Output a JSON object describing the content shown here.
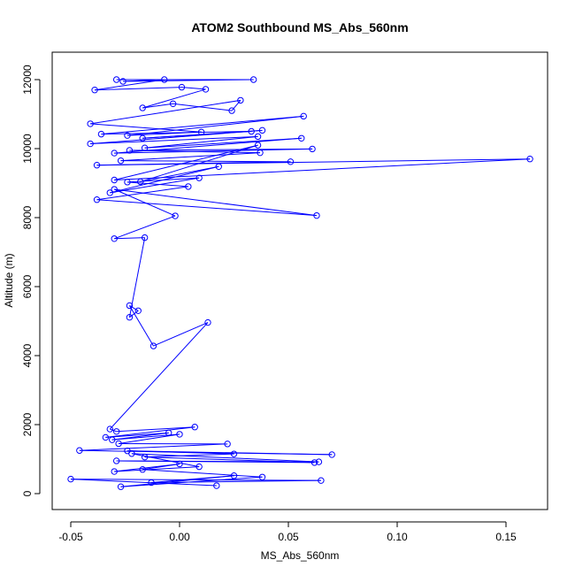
{
  "chart_data": {
    "type": "line",
    "title": "ATOM2 Southbound MS_Abs_560nm",
    "xlabel": "MS_Abs_560nm",
    "ylabel": "Altitude (m)",
    "xlim": [
      -0.05,
      0.16
    ],
    "ylim": [
      0,
      12000
    ],
    "x_ticks": [
      -0.05,
      0.0,
      0.05,
      0.1,
      0.15
    ],
    "x_tick_labels": [
      "-0.05",
      "0.00",
      "0.05",
      "0.10",
      "0.15"
    ],
    "y_ticks": [
      0,
      2000,
      4000,
      6000,
      8000,
      10000,
      12000
    ],
    "y_tick_labels": [
      "0",
      "2000",
      "4000",
      "6000",
      "8000",
      "10000",
      "12000"
    ],
    "grid": false,
    "series_color": "#0000FF",
    "markers": "open-circle",
    "points": [
      {
        "x": -0.029,
        "y": 12000
      },
      {
        "x": 0.034,
        "y": 12000
      },
      {
        "x": -0.026,
        "y": 11950
      },
      {
        "x": -0.007,
        "y": 12000
      },
      {
        "x": -0.039,
        "y": 11700
      },
      {
        "x": 0.001,
        "y": 11780
      },
      {
        "x": 0.012,
        "y": 11720
      },
      {
        "x": -0.017,
        "y": 11180
      },
      {
        "x": -0.003,
        "y": 11300
      },
      {
        "x": 0.024,
        "y": 11100
      },
      {
        "x": 0.028,
        "y": 11400
      },
      {
        "x": -0.041,
        "y": 10720
      },
      {
        "x": 0.01,
        "y": 10480
      },
      {
        "x": -0.024,
        "y": 10380
      },
      {
        "x": 0.057,
        "y": 10940
      },
      {
        "x": -0.036,
        "y": 10420
      },
      {
        "x": 0.033,
        "y": 10500
      },
      {
        "x": -0.017,
        "y": 10300
      },
      {
        "x": 0.038,
        "y": 10530
      },
      {
        "x": -0.041,
        "y": 10140
      },
      {
        "x": 0.036,
        "y": 10350
      },
      {
        "x": -0.016,
        "y": 10020
      },
      {
        "x": 0.056,
        "y": 10300
      },
      {
        "x": -0.03,
        "y": 9870
      },
      {
        "x": 0.061,
        "y": 9990
      },
      {
        "x": -0.023,
        "y": 9950
      },
      {
        "x": 0.037,
        "y": 9880
      },
      {
        "x": -0.027,
        "y": 9650
      },
      {
        "x": 0.051,
        "y": 9620
      },
      {
        "x": -0.038,
        "y": 9520
      },
      {
        "x": 0.161,
        "y": 9700
      },
      {
        "x": -0.03,
        "y": 9090
      },
      {
        "x": 0.036,
        "y": 10100
      },
      {
        "x": -0.018,
        "y": 9040
      },
      {
        "x": 0.018,
        "y": 9480
      },
      {
        "x": -0.032,
        "y": 8720
      },
      {
        "x": 0.009,
        "y": 9150
      },
      {
        "x": -0.024,
        "y": 9030
      },
      {
        "x": 0.004,
        "y": 8900
      },
      {
        "x": -0.038,
        "y": 8520
      },
      {
        "x": 0.063,
        "y": 8060
      },
      {
        "x": -0.03,
        "y": 8820
      },
      {
        "x": -0.002,
        "y": 8050
      },
      {
        "x": -0.03,
        "y": 7390
      },
      {
        "x": -0.016,
        "y": 7420
      },
      {
        "x": -0.023,
        "y": 5110
      },
      {
        "x": -0.019,
        "y": 5300
      },
      {
        "x": -0.023,
        "y": 5450
      },
      {
        "x": -0.012,
        "y": 4280
      },
      {
        "x": 0.013,
        "y": 4960
      },
      {
        "x": -0.032,
        "y": 1870
      },
      {
        "x": -0.029,
        "y": 1800
      },
      {
        "x": 0.007,
        "y": 1930
      },
      {
        "x": -0.034,
        "y": 1630
      },
      {
        "x": -0.005,
        "y": 1760
      },
      {
        "x": -0.031,
        "y": 1560
      },
      {
        "x": 0.0,
        "y": 1720
      },
      {
        "x": -0.028,
        "y": 1450
      },
      {
        "x": 0.022,
        "y": 1440
      },
      {
        "x": -0.046,
        "y": 1250
      },
      {
        "x": 0.07,
        "y": 1130
      },
      {
        "x": -0.024,
        "y": 1240
      },
      {
        "x": 0.025,
        "y": 1150
      },
      {
        "x": -0.016,
        "y": 1060
      },
      {
        "x": 0.062,
        "y": 900
      },
      {
        "x": -0.029,
        "y": 950
      },
      {
        "x": 0.064,
        "y": 920
      },
      {
        "x": -0.022,
        "y": 1160
      },
      {
        "x": 0.009,
        "y": 780
      },
      {
        "x": -0.03,
        "y": 640
      },
      {
        "x": 0.0,
        "y": 860
      },
      {
        "x": -0.017,
        "y": 700
      },
      {
        "x": 0.038,
        "y": 480
      },
      {
        "x": -0.027,
        "y": 200
      },
      {
        "x": 0.025,
        "y": 520
      },
      {
        "x": -0.013,
        "y": 320
      },
      {
        "x": 0.065,
        "y": 380
      },
      {
        "x": -0.05,
        "y": 420
      },
      {
        "x": 0.017,
        "y": 230
      }
    ]
  }
}
